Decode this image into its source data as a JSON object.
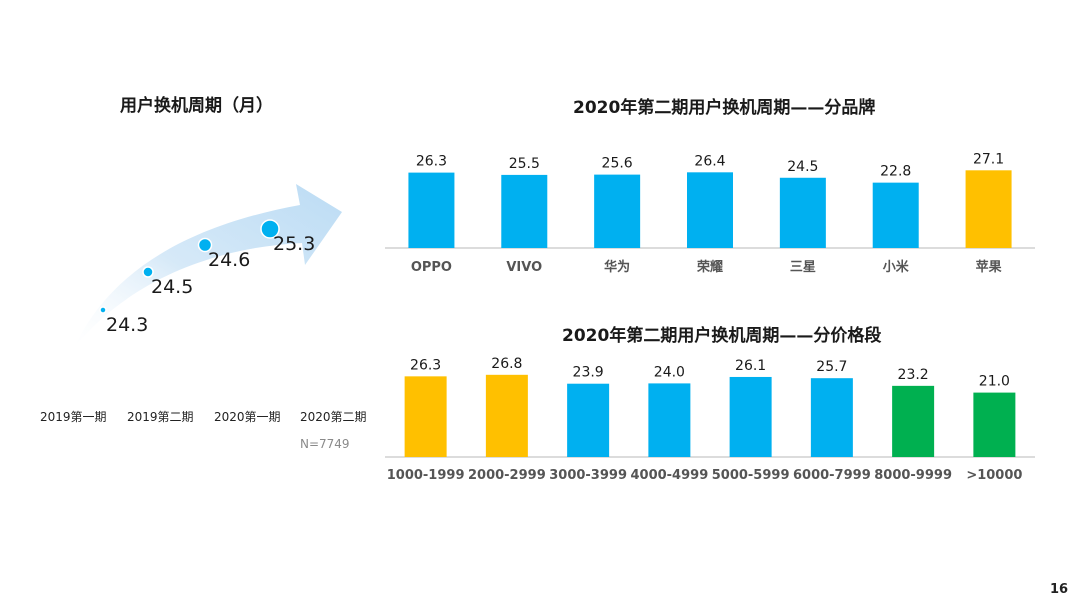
{
  "page_number": "16",
  "colors": {
    "blue": "#00B0F0",
    "gold": "#FFC000",
    "green": "#00B050",
    "axis": "#d0d0d0",
    "arrow": "#cfe6f7"
  },
  "chart_data": [
    {
      "type": "line",
      "title": "用户换机周期（月）",
      "categories": [
        "2019第一期",
        "2019第二期",
        "2020第一期",
        "2020第二期"
      ],
      "values": [
        24.3,
        24.5,
        24.6,
        25.3
      ],
      "value_labels": [
        "24.3",
        "24.5",
        "24.6",
        "25.3"
      ],
      "ylabel": "月",
      "note": "N=7749"
    },
    {
      "type": "bar",
      "title": "2020年第二期用户换机周期——分品牌",
      "categories": [
        "OPPO",
        "VIVO",
        "华为",
        "荣耀",
        "三星",
        "小米",
        "苹果"
      ],
      "values": [
        26.3,
        25.5,
        25.6,
        26.4,
        24.5,
        22.8,
        27.1
      ],
      "value_labels": [
        "26.3",
        "25.5",
        "25.6",
        "26.4",
        "24.5",
        "22.8",
        "27.1"
      ],
      "bar_colors": [
        "blue",
        "blue",
        "blue",
        "blue",
        "blue",
        "blue",
        "gold"
      ],
      "ylim": [
        0,
        30
      ]
    },
    {
      "type": "bar",
      "title": "2020年第二期用户换机周期——分价格段",
      "categories": [
        "1000-1999",
        "2000-2999",
        "3000-3999",
        "4000-4999",
        "5000-5999",
        "6000-7999",
        "8000-9999",
        ">10000"
      ],
      "values": [
        26.3,
        26.8,
        23.9,
        24.0,
        26.1,
        25.7,
        23.2,
        21.0
      ],
      "value_labels": [
        "26.3",
        "26.8",
        "23.9",
        "24.0",
        "26.1",
        "25.7",
        "23.2",
        "21.0"
      ],
      "bar_colors": [
        "gold",
        "gold",
        "blue",
        "blue",
        "blue",
        "blue",
        "green",
        "green"
      ],
      "ylim": [
        0,
        30
      ]
    }
  ]
}
